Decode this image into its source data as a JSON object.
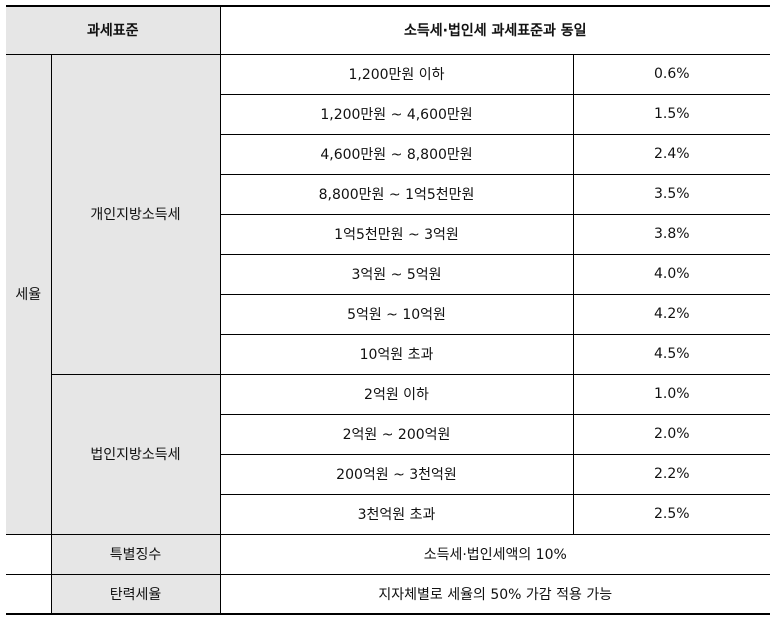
{
  "header": {
    "col1": "과세표준",
    "col2": "소득세·법인세 과세표준과 동일"
  },
  "rate_label": "세율",
  "individual": {
    "label": "개인지방소득세",
    "rows": [
      {
        "bracket": "1,200만원 이하",
        "rate": "0.6%"
      },
      {
        "bracket": "1,200만원 ~ 4,600만원",
        "rate": "1.5%"
      },
      {
        "bracket": "4,600만원 ~ 8,800만원",
        "rate": "2.4%"
      },
      {
        "bracket": "8,800만원 ~ 1억5천만원",
        "rate": "3.5%"
      },
      {
        "bracket": "1억5천만원 ~ 3억원",
        "rate": "3.8%"
      },
      {
        "bracket": "3억원 ~ 5억원",
        "rate": "4.0%"
      },
      {
        "bracket": "5억원 ~ 10억원",
        "rate": "4.2%"
      },
      {
        "bracket": "10억원 초과",
        "rate": "4.5%"
      }
    ]
  },
  "corporate": {
    "label": "법인지방소득세",
    "rows": [
      {
        "bracket": "2억원 이하",
        "rate": "1.0%"
      },
      {
        "bracket": "2억원 ~ 200억원",
        "rate": "2.0%"
      },
      {
        "bracket": "200억원 ~ 3천억원",
        "rate": "2.2%"
      },
      {
        "bracket": "3천억원 초과",
        "rate": "2.5%"
      }
    ]
  },
  "special": {
    "label": "특별징수",
    "value": "소득세·법인세액의 10%"
  },
  "flexible": {
    "label": "탄력세율",
    "value": "지자체별로 세율의 50% 가감 적용 가능"
  }
}
